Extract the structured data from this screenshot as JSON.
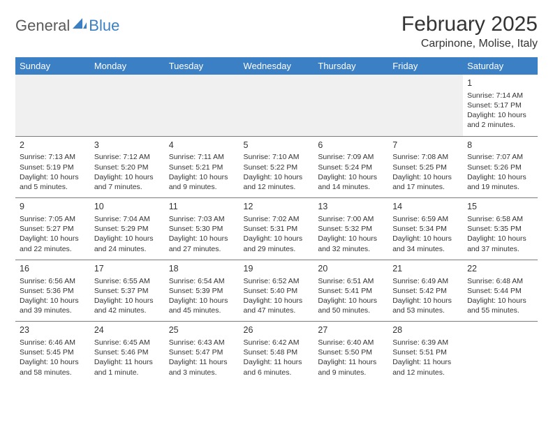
{
  "logo": {
    "part1": "General",
    "part2": "Blue"
  },
  "title": "February 2025",
  "location": "Carpinone, Molise, Italy",
  "colors": {
    "header_bg": "#3b7fc4",
    "header_fg": "#ffffff",
    "border": "#7a7a7a",
    "text": "#333333",
    "empty_bg": "#f0f0f0"
  },
  "day_headers": [
    "Sunday",
    "Monday",
    "Tuesday",
    "Wednesday",
    "Thursday",
    "Friday",
    "Saturday"
  ],
  "weeks": [
    [
      null,
      null,
      null,
      null,
      null,
      null,
      {
        "n": "1",
        "sr": "Sunrise: 7:14 AM",
        "ss": "Sunset: 5:17 PM",
        "dl": "Daylight: 10 hours and 2 minutes."
      }
    ],
    [
      {
        "n": "2",
        "sr": "Sunrise: 7:13 AM",
        "ss": "Sunset: 5:19 PM",
        "dl": "Daylight: 10 hours and 5 minutes."
      },
      {
        "n": "3",
        "sr": "Sunrise: 7:12 AM",
        "ss": "Sunset: 5:20 PM",
        "dl": "Daylight: 10 hours and 7 minutes."
      },
      {
        "n": "4",
        "sr": "Sunrise: 7:11 AM",
        "ss": "Sunset: 5:21 PM",
        "dl": "Daylight: 10 hours and 9 minutes."
      },
      {
        "n": "5",
        "sr": "Sunrise: 7:10 AM",
        "ss": "Sunset: 5:22 PM",
        "dl": "Daylight: 10 hours and 12 minutes."
      },
      {
        "n": "6",
        "sr": "Sunrise: 7:09 AM",
        "ss": "Sunset: 5:24 PM",
        "dl": "Daylight: 10 hours and 14 minutes."
      },
      {
        "n": "7",
        "sr": "Sunrise: 7:08 AM",
        "ss": "Sunset: 5:25 PM",
        "dl": "Daylight: 10 hours and 17 minutes."
      },
      {
        "n": "8",
        "sr": "Sunrise: 7:07 AM",
        "ss": "Sunset: 5:26 PM",
        "dl": "Daylight: 10 hours and 19 minutes."
      }
    ],
    [
      {
        "n": "9",
        "sr": "Sunrise: 7:05 AM",
        "ss": "Sunset: 5:27 PM",
        "dl": "Daylight: 10 hours and 22 minutes."
      },
      {
        "n": "10",
        "sr": "Sunrise: 7:04 AM",
        "ss": "Sunset: 5:29 PM",
        "dl": "Daylight: 10 hours and 24 minutes."
      },
      {
        "n": "11",
        "sr": "Sunrise: 7:03 AM",
        "ss": "Sunset: 5:30 PM",
        "dl": "Daylight: 10 hours and 27 minutes."
      },
      {
        "n": "12",
        "sr": "Sunrise: 7:02 AM",
        "ss": "Sunset: 5:31 PM",
        "dl": "Daylight: 10 hours and 29 minutes."
      },
      {
        "n": "13",
        "sr": "Sunrise: 7:00 AM",
        "ss": "Sunset: 5:32 PM",
        "dl": "Daylight: 10 hours and 32 minutes."
      },
      {
        "n": "14",
        "sr": "Sunrise: 6:59 AM",
        "ss": "Sunset: 5:34 PM",
        "dl": "Daylight: 10 hours and 34 minutes."
      },
      {
        "n": "15",
        "sr": "Sunrise: 6:58 AM",
        "ss": "Sunset: 5:35 PM",
        "dl": "Daylight: 10 hours and 37 minutes."
      }
    ],
    [
      {
        "n": "16",
        "sr": "Sunrise: 6:56 AM",
        "ss": "Sunset: 5:36 PM",
        "dl": "Daylight: 10 hours and 39 minutes."
      },
      {
        "n": "17",
        "sr": "Sunrise: 6:55 AM",
        "ss": "Sunset: 5:37 PM",
        "dl": "Daylight: 10 hours and 42 minutes."
      },
      {
        "n": "18",
        "sr": "Sunrise: 6:54 AM",
        "ss": "Sunset: 5:39 PM",
        "dl": "Daylight: 10 hours and 45 minutes."
      },
      {
        "n": "19",
        "sr": "Sunrise: 6:52 AM",
        "ss": "Sunset: 5:40 PM",
        "dl": "Daylight: 10 hours and 47 minutes."
      },
      {
        "n": "20",
        "sr": "Sunrise: 6:51 AM",
        "ss": "Sunset: 5:41 PM",
        "dl": "Daylight: 10 hours and 50 minutes."
      },
      {
        "n": "21",
        "sr": "Sunrise: 6:49 AM",
        "ss": "Sunset: 5:42 PM",
        "dl": "Daylight: 10 hours and 53 minutes."
      },
      {
        "n": "22",
        "sr": "Sunrise: 6:48 AM",
        "ss": "Sunset: 5:44 PM",
        "dl": "Daylight: 10 hours and 55 minutes."
      }
    ],
    [
      {
        "n": "23",
        "sr": "Sunrise: 6:46 AM",
        "ss": "Sunset: 5:45 PM",
        "dl": "Daylight: 10 hours and 58 minutes."
      },
      {
        "n": "24",
        "sr": "Sunrise: 6:45 AM",
        "ss": "Sunset: 5:46 PM",
        "dl": "Daylight: 11 hours and 1 minute."
      },
      {
        "n": "25",
        "sr": "Sunrise: 6:43 AM",
        "ss": "Sunset: 5:47 PM",
        "dl": "Daylight: 11 hours and 3 minutes."
      },
      {
        "n": "26",
        "sr": "Sunrise: 6:42 AM",
        "ss": "Sunset: 5:48 PM",
        "dl": "Daylight: 11 hours and 6 minutes."
      },
      {
        "n": "27",
        "sr": "Sunrise: 6:40 AM",
        "ss": "Sunset: 5:50 PM",
        "dl": "Daylight: 11 hours and 9 minutes."
      },
      {
        "n": "28",
        "sr": "Sunrise: 6:39 AM",
        "ss": "Sunset: 5:51 PM",
        "dl": "Daylight: 11 hours and 12 minutes."
      },
      null
    ]
  ]
}
